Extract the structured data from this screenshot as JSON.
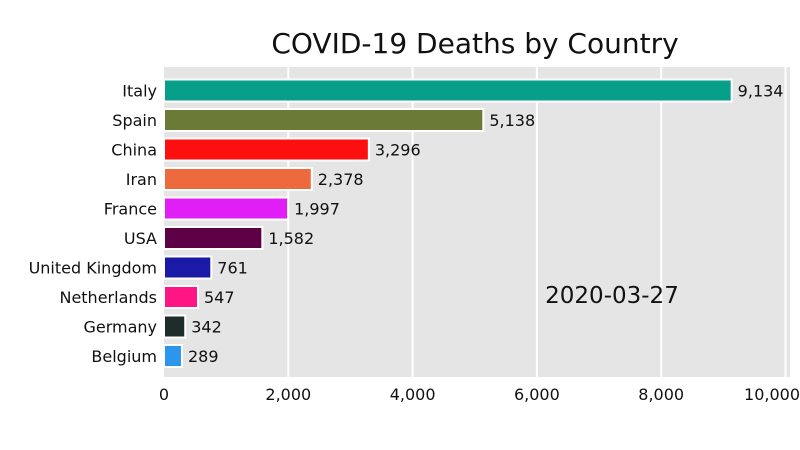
{
  "chart_data": {
    "type": "bar",
    "orientation": "horizontal",
    "title": "COVID-19 Deaths by Country",
    "annotation": "2020-03-27",
    "xlabel": "",
    "ylabel": "",
    "xlim": [
      0,
      10000
    ],
    "xticks": [
      0,
      2000,
      4000,
      6000,
      8000,
      10000
    ],
    "xtick_labels": [
      "0",
      "2,000",
      "4,000",
      "6,000",
      "8,000",
      "10,000"
    ],
    "grid": true,
    "legend": "none",
    "categories": [
      "Italy",
      "Spain",
      "China",
      "Iran",
      "France",
      "USA",
      "United Kingdom",
      "Netherlands",
      "Germany",
      "Belgium"
    ],
    "values": [
      9134,
      5138,
      3296,
      2378,
      1997,
      1582,
      761,
      547,
      342,
      289
    ],
    "value_labels": [
      "9,134",
      "5,138",
      "3,296",
      "2,378",
      "1,997",
      "1,582",
      "761",
      "547",
      "342",
      "289"
    ],
    "colors": [
      "#079F8A",
      "#6B7A35",
      "#FF1010",
      "#EC6A3D",
      "#E01EF5",
      "#5E0045",
      "#1A1AA6",
      "#FF1684",
      "#1E2D2A",
      "#2C96EC"
    ],
    "plot_background": "#E5E5E5"
  }
}
